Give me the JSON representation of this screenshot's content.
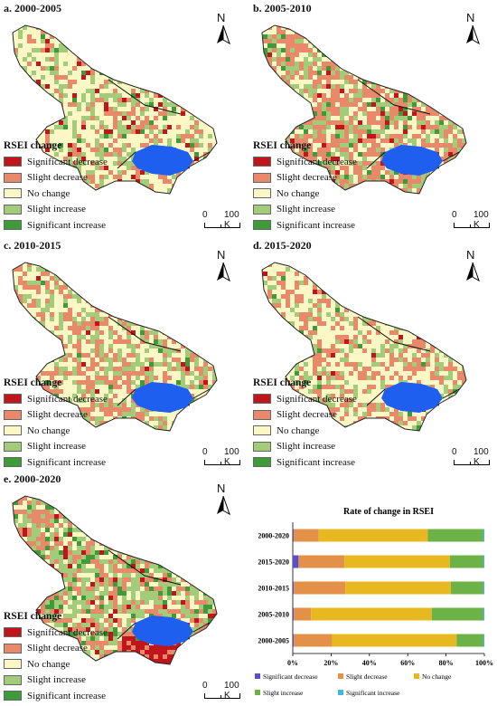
{
  "panels": [
    {
      "title": "a. 2000-2005"
    },
    {
      "title": "b. 2005-2010"
    },
    {
      "title": "c. 2010-2015"
    },
    {
      "title": "d. 2015-2020"
    },
    {
      "title": "e. 2000-2020"
    }
  ],
  "north_label": "N",
  "legend": {
    "title": "RSEI change",
    "items": [
      {
        "label": "Significant decrease",
        "color": "#c0161b"
      },
      {
        "label": "Slight decrease",
        "color": "#e8896a"
      },
      {
        "label": "No change",
        "color": "#fbf8c6"
      },
      {
        "label": "Slight increase",
        "color": "#a3cc7a"
      },
      {
        "label": "Significant increase",
        "color": "#3f9a3a"
      }
    ]
  },
  "scale": {
    "zero": "0",
    "unit": "100 K"
  },
  "lake_color": "#1f5ff0",
  "chart_data": {
    "type": "bar",
    "stacked": true,
    "orientation": "horizontal",
    "title": "Rate of change in RSEI",
    "categories": [
      "2000-2020",
      "2015-2020",
      "2010-2015",
      "2005-2010",
      "2000-2005"
    ],
    "xlim": [
      0,
      100
    ],
    "xticks": [
      "0%",
      "20%",
      "40%",
      "60%",
      "80%",
      "100%"
    ],
    "series": [
      {
        "name": "Significant decrease",
        "color": "#5b4fc8",
        "values": [
          0.5,
          3,
          0.5,
          0.5,
          0.5
        ]
      },
      {
        "name": "Slight decrease",
        "color": "#e39148",
        "values": [
          13,
          24,
          27,
          9,
          20
        ]
      },
      {
        "name": "No change",
        "color": "#e8b820",
        "values": [
          57,
          55,
          55,
          63,
          65
        ]
      },
      {
        "name": "Slight increase",
        "color": "#6cb247",
        "values": [
          29,
          17.5,
          17,
          27,
          14
        ]
      },
      {
        "name": "Significant increase",
        "color": "#43b8d8",
        "values": [
          0.5,
          0.5,
          0.5,
          0.5,
          0.5
        ]
      }
    ],
    "legend_position": "bottom"
  }
}
